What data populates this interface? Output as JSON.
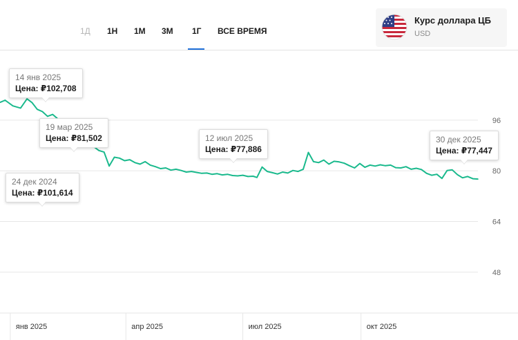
{
  "period_tabs": [
    {
      "label": "1Д",
      "enabled": false
    },
    {
      "label": "1Н",
      "enabled": true
    },
    {
      "label": "1М",
      "enabled": true
    },
    {
      "label": "3М",
      "enabled": true
    },
    {
      "label": "1Г",
      "enabled": true,
      "active": true
    },
    {
      "label": "ВСЕ ВРЕМЯ",
      "enabled": true
    }
  ],
  "asset": {
    "name": "Курс доллара ЦБ",
    "code": "USD",
    "flag_icon": "us-flag-icon"
  },
  "colors": {
    "line": "#19b98c",
    "active_tab": "#1e6fd9",
    "grid": "#e6e6e6",
    "axis_text": "#666666"
  },
  "tooltips": [
    {
      "date": "14 янв 2025",
      "price_label": "Цена:",
      "price": "₽102,708"
    },
    {
      "date": "19 мар 2025",
      "price_label": "Цена:",
      "price": "₽81,502"
    },
    {
      "date": "12 июл 2025",
      "price_label": "Цена:",
      "price": "₽77,886"
    },
    {
      "date": "30 дек 2025",
      "price_label": "Цена:",
      "price": "₽77,447"
    },
    {
      "date": "24 дек 2024",
      "price_label": "Цена:",
      "price": "₽101,614"
    }
  ],
  "chart_data": {
    "type": "line",
    "title": "",
    "xlabel": "",
    "ylabel": "",
    "x_tick_labels": [
      "янв 2025",
      "апр 2025",
      "июл 2025",
      "окт 2025"
    ],
    "x_ticks": [
      "2025-01-01",
      "2025-04-01",
      "2025-07-01",
      "2025-10-01"
    ],
    "y_ticks": [
      48,
      64,
      80,
      96
    ],
    "ylim": [
      34,
      118
    ],
    "xlim": [
      "2024-12-24",
      "2025-12-31"
    ],
    "grid": "horizontal",
    "legend": "none",
    "series": [
      {
        "x": [
          "2024-12-24",
          "2024-12-28",
          "2025-01-03",
          "2025-01-09",
          "2025-01-14",
          "2025-01-18",
          "2025-01-22",
          "2025-01-26",
          "2025-01-30",
          "2025-02-03",
          "2025-02-07",
          "2025-02-11",
          "2025-02-15",
          "2025-02-19",
          "2025-02-23",
          "2025-02-27",
          "2025-03-03",
          "2025-03-07",
          "2025-03-11",
          "2025-03-15",
          "2025-03-19",
          "2025-03-23",
          "2025-03-27",
          "2025-03-31",
          "2025-04-04",
          "2025-04-08",
          "2025-04-12",
          "2025-04-16",
          "2025-04-20",
          "2025-04-24",
          "2025-04-28",
          "2025-05-02",
          "2025-05-06",
          "2025-05-10",
          "2025-05-14",
          "2025-05-18",
          "2025-05-22",
          "2025-05-26",
          "2025-05-30",
          "2025-06-03",
          "2025-06-07",
          "2025-06-11",
          "2025-06-15",
          "2025-06-19",
          "2025-06-23",
          "2025-06-27",
          "2025-07-01",
          "2025-07-05",
          "2025-07-09",
          "2025-07-12",
          "2025-07-16",
          "2025-07-20",
          "2025-07-24",
          "2025-07-28",
          "2025-08-01",
          "2025-08-05",
          "2025-08-09",
          "2025-08-13",
          "2025-08-17",
          "2025-08-21",
          "2025-08-25",
          "2025-08-29",
          "2025-09-02",
          "2025-09-06",
          "2025-09-10",
          "2025-09-14",
          "2025-09-18",
          "2025-09-22",
          "2025-09-26",
          "2025-09-30",
          "2025-10-04",
          "2025-10-08",
          "2025-10-12",
          "2025-10-16",
          "2025-10-20",
          "2025-10-24",
          "2025-10-28",
          "2025-11-01",
          "2025-11-05",
          "2025-11-09",
          "2025-11-13",
          "2025-11-17",
          "2025-11-21",
          "2025-11-25",
          "2025-11-29",
          "2025-12-03",
          "2025-12-07",
          "2025-12-11",
          "2025-12-15",
          "2025-12-19",
          "2025-12-23",
          "2025-12-27",
          "2025-12-31"
        ],
        "y": [
          101.6,
          102.3,
          100.5,
          99.8,
          102.7,
          101.5,
          99.4,
          98.7,
          97.2,
          97.8,
          96.4,
          92.6,
          90.8,
          89.1,
          88.6,
          87.9,
          88.5,
          87.6,
          86.4,
          85.9,
          81.5,
          84.3,
          84.0,
          83.2,
          83.5,
          82.6,
          82.1,
          82.9,
          81.8,
          81.3,
          80.7,
          80.9,
          80.2,
          80.5,
          80.1,
          79.6,
          79.8,
          79.5,
          79.2,
          79.3,
          78.9,
          79.1,
          78.7,
          78.9,
          78.5,
          78.4,
          78.6,
          78.2,
          78.3,
          77.9,
          81.2,
          79.8,
          79.4,
          79.0,
          79.6,
          79.3,
          80.1,
          79.8,
          80.5,
          85.8,
          82.9,
          82.6,
          83.4,
          82.1,
          83.0,
          82.8,
          82.4,
          81.6,
          80.9,
          82.3,
          81.1,
          81.8,
          81.5,
          81.9,
          81.6,
          81.8,
          81.0,
          80.9,
          81.3,
          80.5,
          80.8,
          80.4,
          79.2,
          78.6,
          78.9,
          77.6,
          80.1,
          80.3,
          78.8,
          77.8,
          78.2,
          77.5,
          77.4
        ]
      }
    ]
  }
}
